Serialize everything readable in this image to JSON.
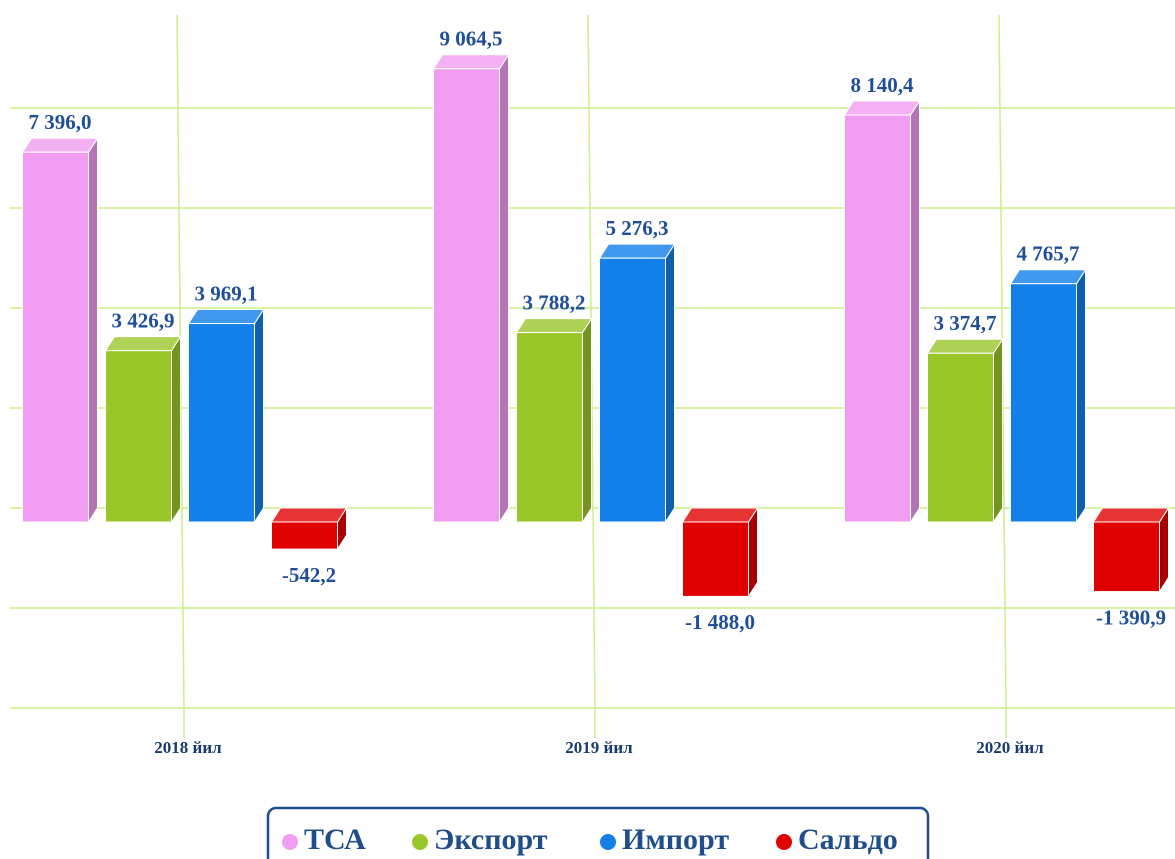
{
  "chart_data": {
    "type": "bar3d",
    "categories": [
      "2018 йил",
      "2019 йил",
      "2020 йил"
    ],
    "series": [
      {
        "name": "ТСА",
        "color": "#f09cf0",
        "values": [
          7396.0,
          9064.5,
          8140.4
        ],
        "value_labels": [
          "7 396,0",
          "9 064,5",
          "8 140,4"
        ]
      },
      {
        "name": "Экспорт",
        "color": "#99c72a",
        "values": [
          3426.9,
          3788.2,
          3374.7
        ],
        "value_labels": [
          "3 426,9",
          "3 788,2",
          "3 374,7"
        ]
      },
      {
        "name": "Импорт",
        "color": "#1280e8",
        "values": [
          3969.1,
          5276.3,
          4765.7
        ],
        "value_labels": [
          "3 969,1",
          "5 276,3",
          "4 765,7"
        ]
      },
      {
        "name": "Сальдо",
        "color": "#e00000",
        "values": [
          -542.2,
          -1488.0,
          -1390.9
        ],
        "value_labels": [
          "-542,2",
          "-1 488,0",
          "-1 390,9"
        ]
      }
    ],
    "ylim": [
      -4000,
      10000
    ],
    "yticks": [
      -4000,
      -2000,
      0,
      2000,
      4000,
      6000,
      8000
    ],
    "grid": true,
    "legend": "bottom"
  }
}
